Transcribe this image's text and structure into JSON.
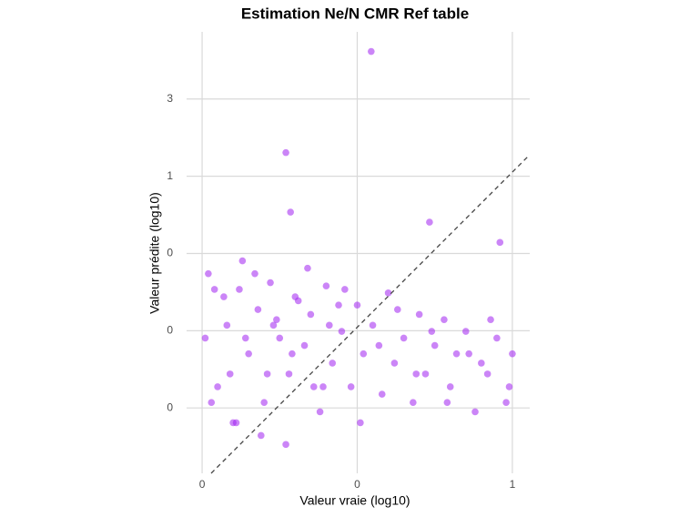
{
  "chart_data": {
    "type": "scatter",
    "title": "Estimation Ne/N CMR Ref table",
    "x_label": "Valeur vraie (log10)",
    "y_label": "Valeur prédite (log10)",
    "color": "#a020f0",
    "xlim": [
      -0.05,
      1.056
    ],
    "ylim": [
      0.0146,
      7.8
    ],
    "y_log": true,
    "grid": true,
    "xticks": [
      {
        "value": 0,
        "label": "0"
      },
      {
        "value": 0.5,
        "label": "0"
      },
      {
        "value": 1,
        "label": "1"
      }
    ],
    "yticks": [
      {
        "value": 0.037,
        "label": "0"
      },
      {
        "value": 0.111,
        "label": "0"
      },
      {
        "value": 0.333,
        "label": "0"
      },
      {
        "value": 1,
        "label": "1"
      },
      {
        "value": 3,
        "label": "3"
      }
    ],
    "x": [
      0.02,
      0.05,
      0.08,
      0.1,
      0.12,
      0.15,
      0.18,
      0.2,
      0.22,
      0.25,
      0.28,
      0.3,
      0.33,
      0.35,
      0.38,
      0.4,
      0.42,
      0.45,
      0.48,
      0.5,
      0.52,
      0.55,
      0.58,
      0.6,
      0.62,
      0.65,
      0.68,
      0.7,
      0.72,
      0.75,
      0.78,
      0.8,
      0.82,
      0.85,
      0.88,
      0.9,
      0.92,
      0.95,
      0.98,
      1.0,
      0.03,
      0.07,
      0.11,
      0.14,
      0.17,
      0.21,
      0.24,
      0.27,
      0.31,
      0.36,
      0.41,
      0.46,
      0.51,
      0.57,
      0.63,
      0.69,
      0.74,
      0.79,
      0.86,
      0.93,
      0.99,
      0.01,
      0.04,
      0.09,
      0.13,
      0.19,
      0.23,
      0.29,
      0.34,
      0.39,
      0.44,
      0.545,
      0.27,
      0.285,
      0.733,
      0.96
    ],
    "y": [
      0.25,
      0.05,
      0.12,
      0.03,
      0.2,
      0.08,
      0.15,
      0.04,
      0.22,
      0.1,
      0.06,
      0.18,
      0.09,
      0.14,
      0.035,
      0.21,
      0.07,
      0.11,
      0.05,
      0.16,
      0.08,
      0.12,
      0.045,
      0.19,
      0.07,
      0.1,
      0.04,
      0.14,
      0.06,
      0.09,
      0.13,
      0.05,
      0.08,
      0.11,
      0.035,
      0.07,
      0.06,
      0.1,
      0.04,
      0.08,
      0.04,
      0.18,
      0.03,
      0.1,
      0.25,
      0.06,
      0.13,
      0.022,
      0.17,
      0.05,
      0.12,
      0.2,
      0.03,
      0.09,
      0.15,
      0.06,
      0.11,
      0.04,
      0.08,
      0.13,
      0.05,
      0.1,
      0.2,
      0.06,
      0.3,
      0.025,
      0.12,
      0.08,
      0.27,
      0.05,
      0.16,
      5.9,
      1.4,
      0.6,
      0.52,
      0.39
    ]
  }
}
